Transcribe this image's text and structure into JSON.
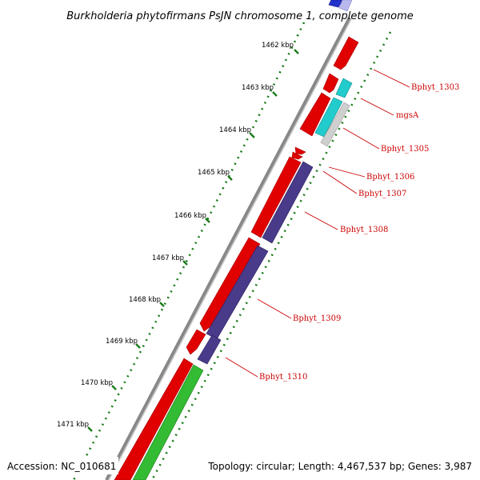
{
  "title": "Burkholderia phytofirmans PsJN chromosome 1, complete genome",
  "footer": {
    "accession": "Accession: NC_010681",
    "topology": "Topology: circular; Length: 4,467,537 bp; Genes: 3,987"
  },
  "ruler_labels": [
    "1462 kbp",
    "1463 kbp",
    "1464 kbp",
    "1465 kbp",
    "1466 kbp",
    "1467 kbp",
    "1468 kbp",
    "1469 kbp",
    "1470 kbp",
    "1471 kbp"
  ],
  "gene_labels": [
    "Bphyt_1303",
    "mgsA",
    "Bphyt_1305",
    "Bphyt_1306",
    "Bphyt_1307",
    "Bphyt_1308",
    "Bphyt_1309",
    "Bphyt_1310"
  ],
  "colors": {
    "forward_cds": "#e00000",
    "reverse_cds": "#4a3a8a",
    "gene_label": "#cc0000",
    "tick": "#1a7a1a",
    "backbone": "#888888",
    "cyan_feature": "#22cccc",
    "green_feature": "#33bb33",
    "blue_feature": "#2233cc"
  }
}
